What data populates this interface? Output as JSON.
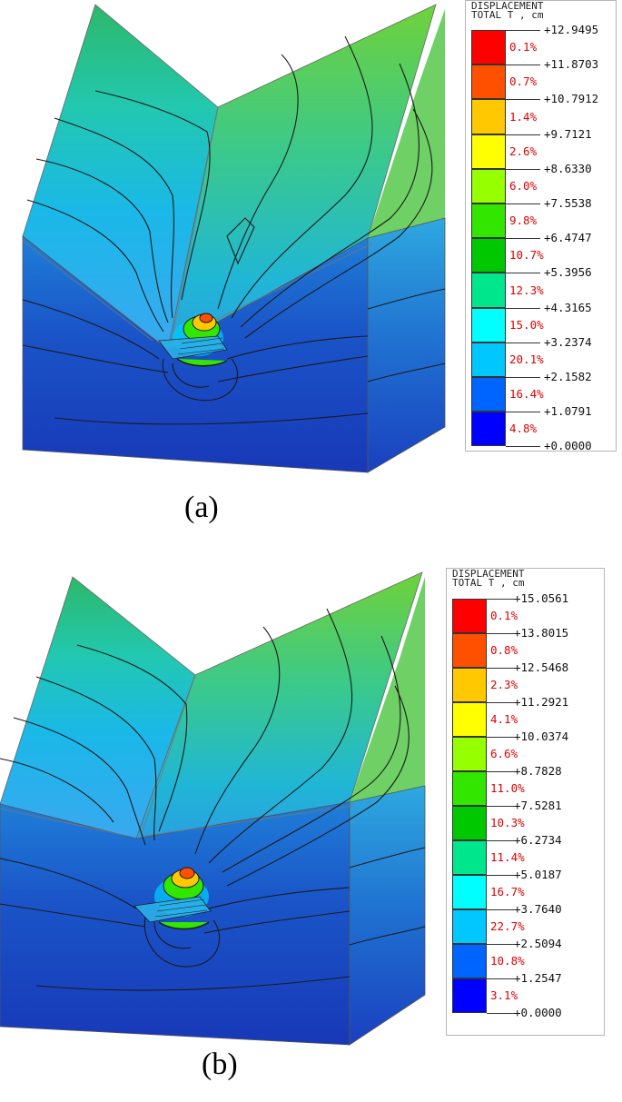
{
  "panels": [
    {
      "caption": "(a)",
      "legend": {
        "title_line1": "DISPLACEMENT",
        "title_line2": "TOTAL T , cm",
        "levels": [
          "+12.9495",
          "+11.8703",
          "+10.7912",
          "+9.7121",
          "+8.6330",
          "+7.5538",
          "+6.4747",
          "+5.3956",
          "+4.3165",
          "+3.2374",
          "+2.1582",
          "+1.0791",
          "+0.0000"
        ],
        "percents": [
          "0.1%",
          "0.7%",
          "1.4%",
          "2.6%",
          "6.0%",
          "9.8%",
          "10.7%",
          "12.3%",
          "15.0%",
          "20.1%",
          "16.4%",
          "4.8%"
        ]
      }
    },
    {
      "caption": "(b)",
      "legend": {
        "title_line1": "DISPLACEMENT",
        "title_line2": "TOTAL T , cm",
        "levels": [
          "+15.0561",
          "+13.8015",
          "+12.5468",
          "+11.2921",
          "+10.0374",
          "+8.7828",
          "+7.5281",
          "+6.2734",
          "+5.0187",
          "+3.7640",
          "+2.5094",
          "+1.2547",
          "+0.0000"
        ],
        "percents": [
          "0.1%",
          "0.8%",
          "2.3%",
          "4.1%",
          "6.6%",
          "11.0%",
          "10.3%",
          "11.4%",
          "16.7%",
          "22.7%",
          "10.8%",
          "3.1%"
        ]
      }
    }
  ],
  "colors": {
    "bands": [
      "#ff0000",
      "#ff5000",
      "#ffc800",
      "#ffff00",
      "#96ff00",
      "#32e600",
      "#00c800",
      "#00e68c",
      "#00ffff",
      "#00c8ff",
      "#0064ff",
      "#0000ff"
    ],
    "contour": "#1a1a1a"
  }
}
